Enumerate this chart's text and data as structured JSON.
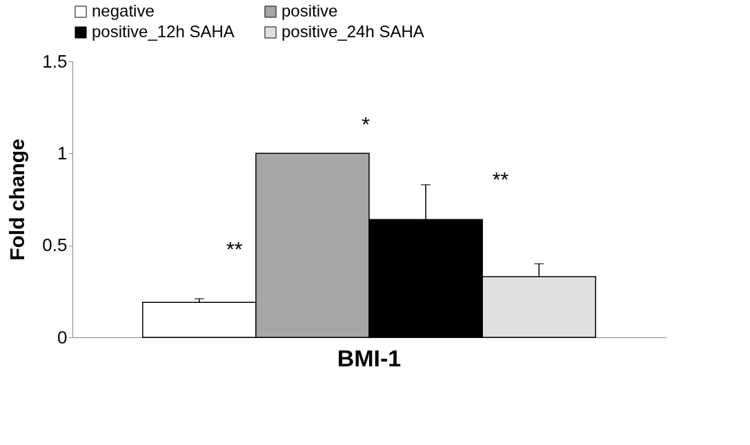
{
  "chart_data": {
    "type": "bar",
    "categories": [
      "BMI-1"
    ],
    "ylabel": "Fold change",
    "ylim": [
      0,
      1.5
    ],
    "yticks": [
      0,
      0.5,
      1,
      1.5
    ],
    "grid": false,
    "legend": "top",
    "annotations": [
      "**",
      "*",
      "**"
    ],
    "series": [
      {
        "name": "negative",
        "color": "#ffffff",
        "values": [
          0.19
        ],
        "errors": [
          [
            0.19,
            0.21
          ]
        ]
      },
      {
        "name": "positive",
        "color": "#a6a6a6",
        "values": [
          1.0
        ]
      },
      {
        "name": "positive_12h SAHA",
        "color": "#000000",
        "values": [
          0.64
        ],
        "errors": [
          [
            0.64,
            0.83
          ]
        ]
      },
      {
        "name": "positive_24h SAHA",
        "color": "#e0e0e0",
        "values": [
          0.33
        ],
        "errors": [
          [
            0.33,
            0.4
          ]
        ]
      }
    ]
  }
}
